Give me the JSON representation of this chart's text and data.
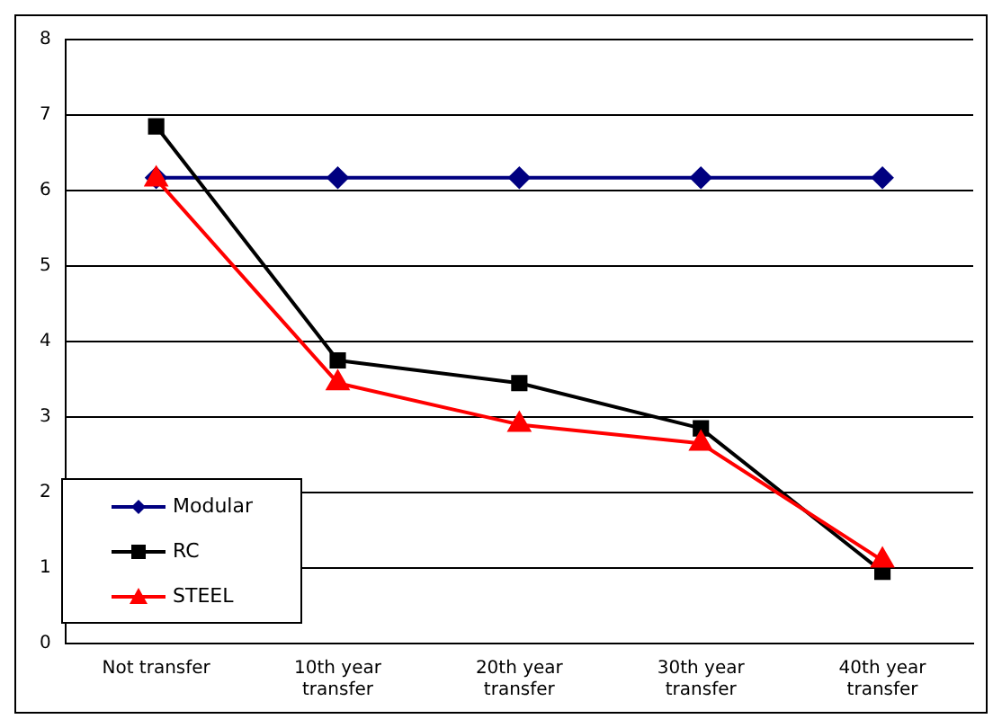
{
  "chart_data": {
    "type": "line",
    "categories": [
      "Not transfer",
      "10th year transfer",
      "20th year transfer",
      "30th year transfer",
      "40th year transfer"
    ],
    "series": [
      {
        "name": "Modular",
        "color": "#000080",
        "marker": "diamond",
        "values": [
          6.17,
          6.17,
          6.17,
          6.17,
          6.17
        ]
      },
      {
        "name": "RC",
        "color": "#000000",
        "marker": "square",
        "values": [
          6.85,
          3.75,
          3.45,
          2.85,
          0.95
        ]
      },
      {
        "name": "STEEL",
        "color": "#ff0000",
        "marker": "triangle",
        "values": [
          6.15,
          3.45,
          2.9,
          2.65,
          1.1
        ]
      }
    ],
    "ylim": [
      0,
      8
    ],
    "yticks": [
      0,
      1,
      2,
      3,
      4,
      5,
      6,
      7,
      8
    ],
    "grid": "y",
    "legend": "bottom left",
    "line_style": "solid"
  }
}
